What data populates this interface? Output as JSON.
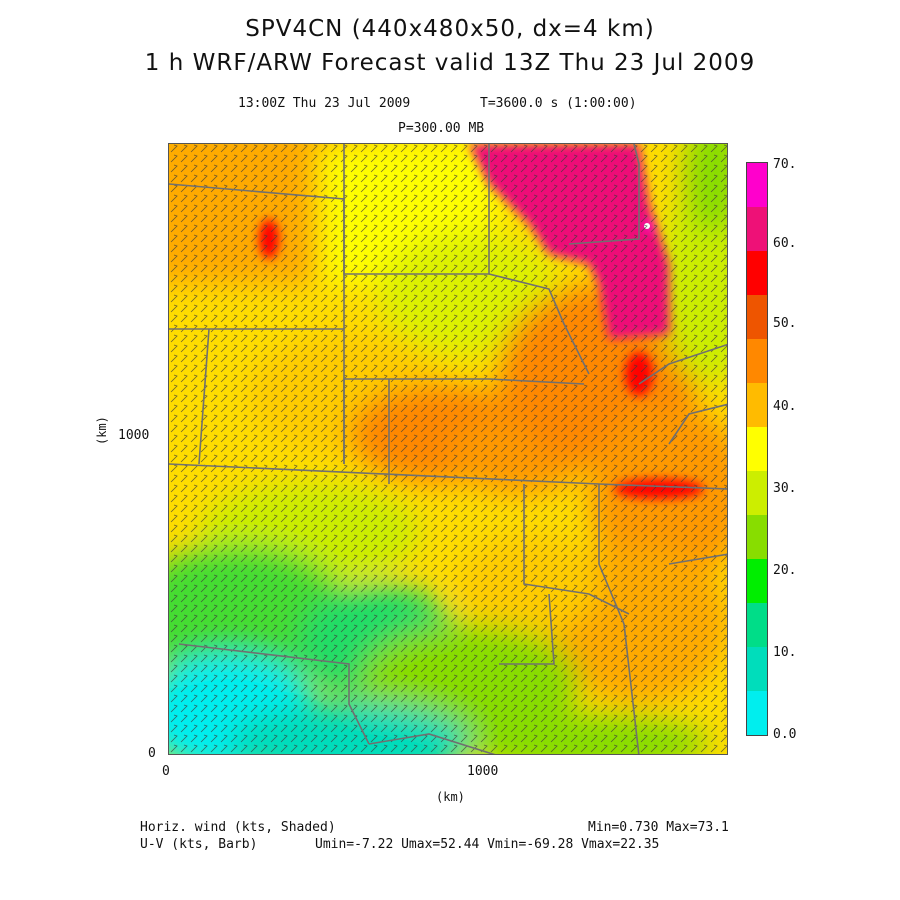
{
  "title": {
    "line1": "SPV4CN (440x480x50, dx=4 km)",
    "line2": "1 h WRF/ARW Forecast valid 13Z Thu 23 Jul 2009"
  },
  "subtitle": {
    "valid_time": "13:00Z Thu 23 Jul 2009",
    "model_time": "T=3600.0 s (1:00:00)",
    "level": "P=300.00 MB"
  },
  "axes": {
    "x_unit": "(km)",
    "y_unit": "(km)",
    "x_ticks": [
      "0",
      "1000"
    ],
    "y_ticks": [
      "0",
      "1000"
    ]
  },
  "colorbar": {
    "labels": [
      "70.",
      "60.",
      "50.",
      "40.",
      "30.",
      "20.",
      "10.",
      "0.0"
    ],
    "colors": [
      "#ff00cc",
      "#ee1177",
      "#ff0000",
      "#ee5500",
      "#ff8800",
      "#ffbb00",
      "#ffff00",
      "#ccee00",
      "#88dd00",
      "#00ee00",
      "#00dd88",
      "#00ddbb",
      "#00eeee"
    ]
  },
  "footer": {
    "field1": "Horiz. wind (kts, Shaded)",
    "field2": "U-V (kts, Barb)",
    "minmax": "Min=0.730 Max=73.1",
    "uv_stats": "Umin=-7.22 Umax=52.44 Vmin=-69.28 Vmax=22.35"
  }
}
